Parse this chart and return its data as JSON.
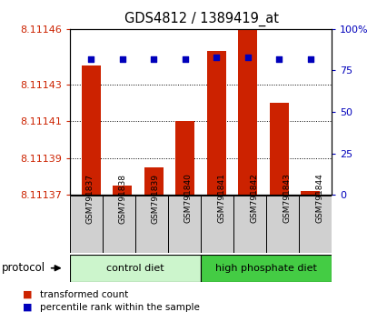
{
  "title": "GDS4812 / 1389419_at",
  "samples": [
    "GSM791837",
    "GSM791838",
    "GSM791839",
    "GSM791840",
    "GSM791841",
    "GSM791842",
    "GSM791843",
    "GSM791844"
  ],
  "transformed_counts": [
    8.11144,
    8.111375,
    8.111385,
    8.11141,
    8.111448,
    8.11146,
    8.11142,
    8.111372
  ],
  "percentile_ranks": [
    82,
    82,
    82,
    82,
    83,
    83,
    82,
    82
  ],
  "ylim_left": [
    8.11137,
    8.11146
  ],
  "ylim_right": [
    0,
    100
  ],
  "yticks_left": [
    8.11137,
    8.11139,
    8.11141,
    8.11143,
    8.11146
  ],
  "yticks_right": [
    0,
    25,
    50,
    75,
    100
  ],
  "groups": [
    {
      "label": "control diet",
      "indices": [
        0,
        1,
        2,
        3
      ],
      "color": "#ccf5cc"
    },
    {
      "label": "high phosphate diet",
      "indices": [
        4,
        5,
        6,
        7
      ],
      "color": "#44cc44"
    }
  ],
  "bar_color": "#cc2200",
  "dot_color": "#0000bb",
  "bar_width": 0.6,
  "label_color_left": "#cc2200",
  "label_color_right": "#0000bb",
  "protocol_label": "protocol",
  "legend_items": [
    {
      "label": "transformed count",
      "color": "#cc2200"
    },
    {
      "label": "percentile rank within the sample",
      "color": "#0000bb"
    }
  ]
}
